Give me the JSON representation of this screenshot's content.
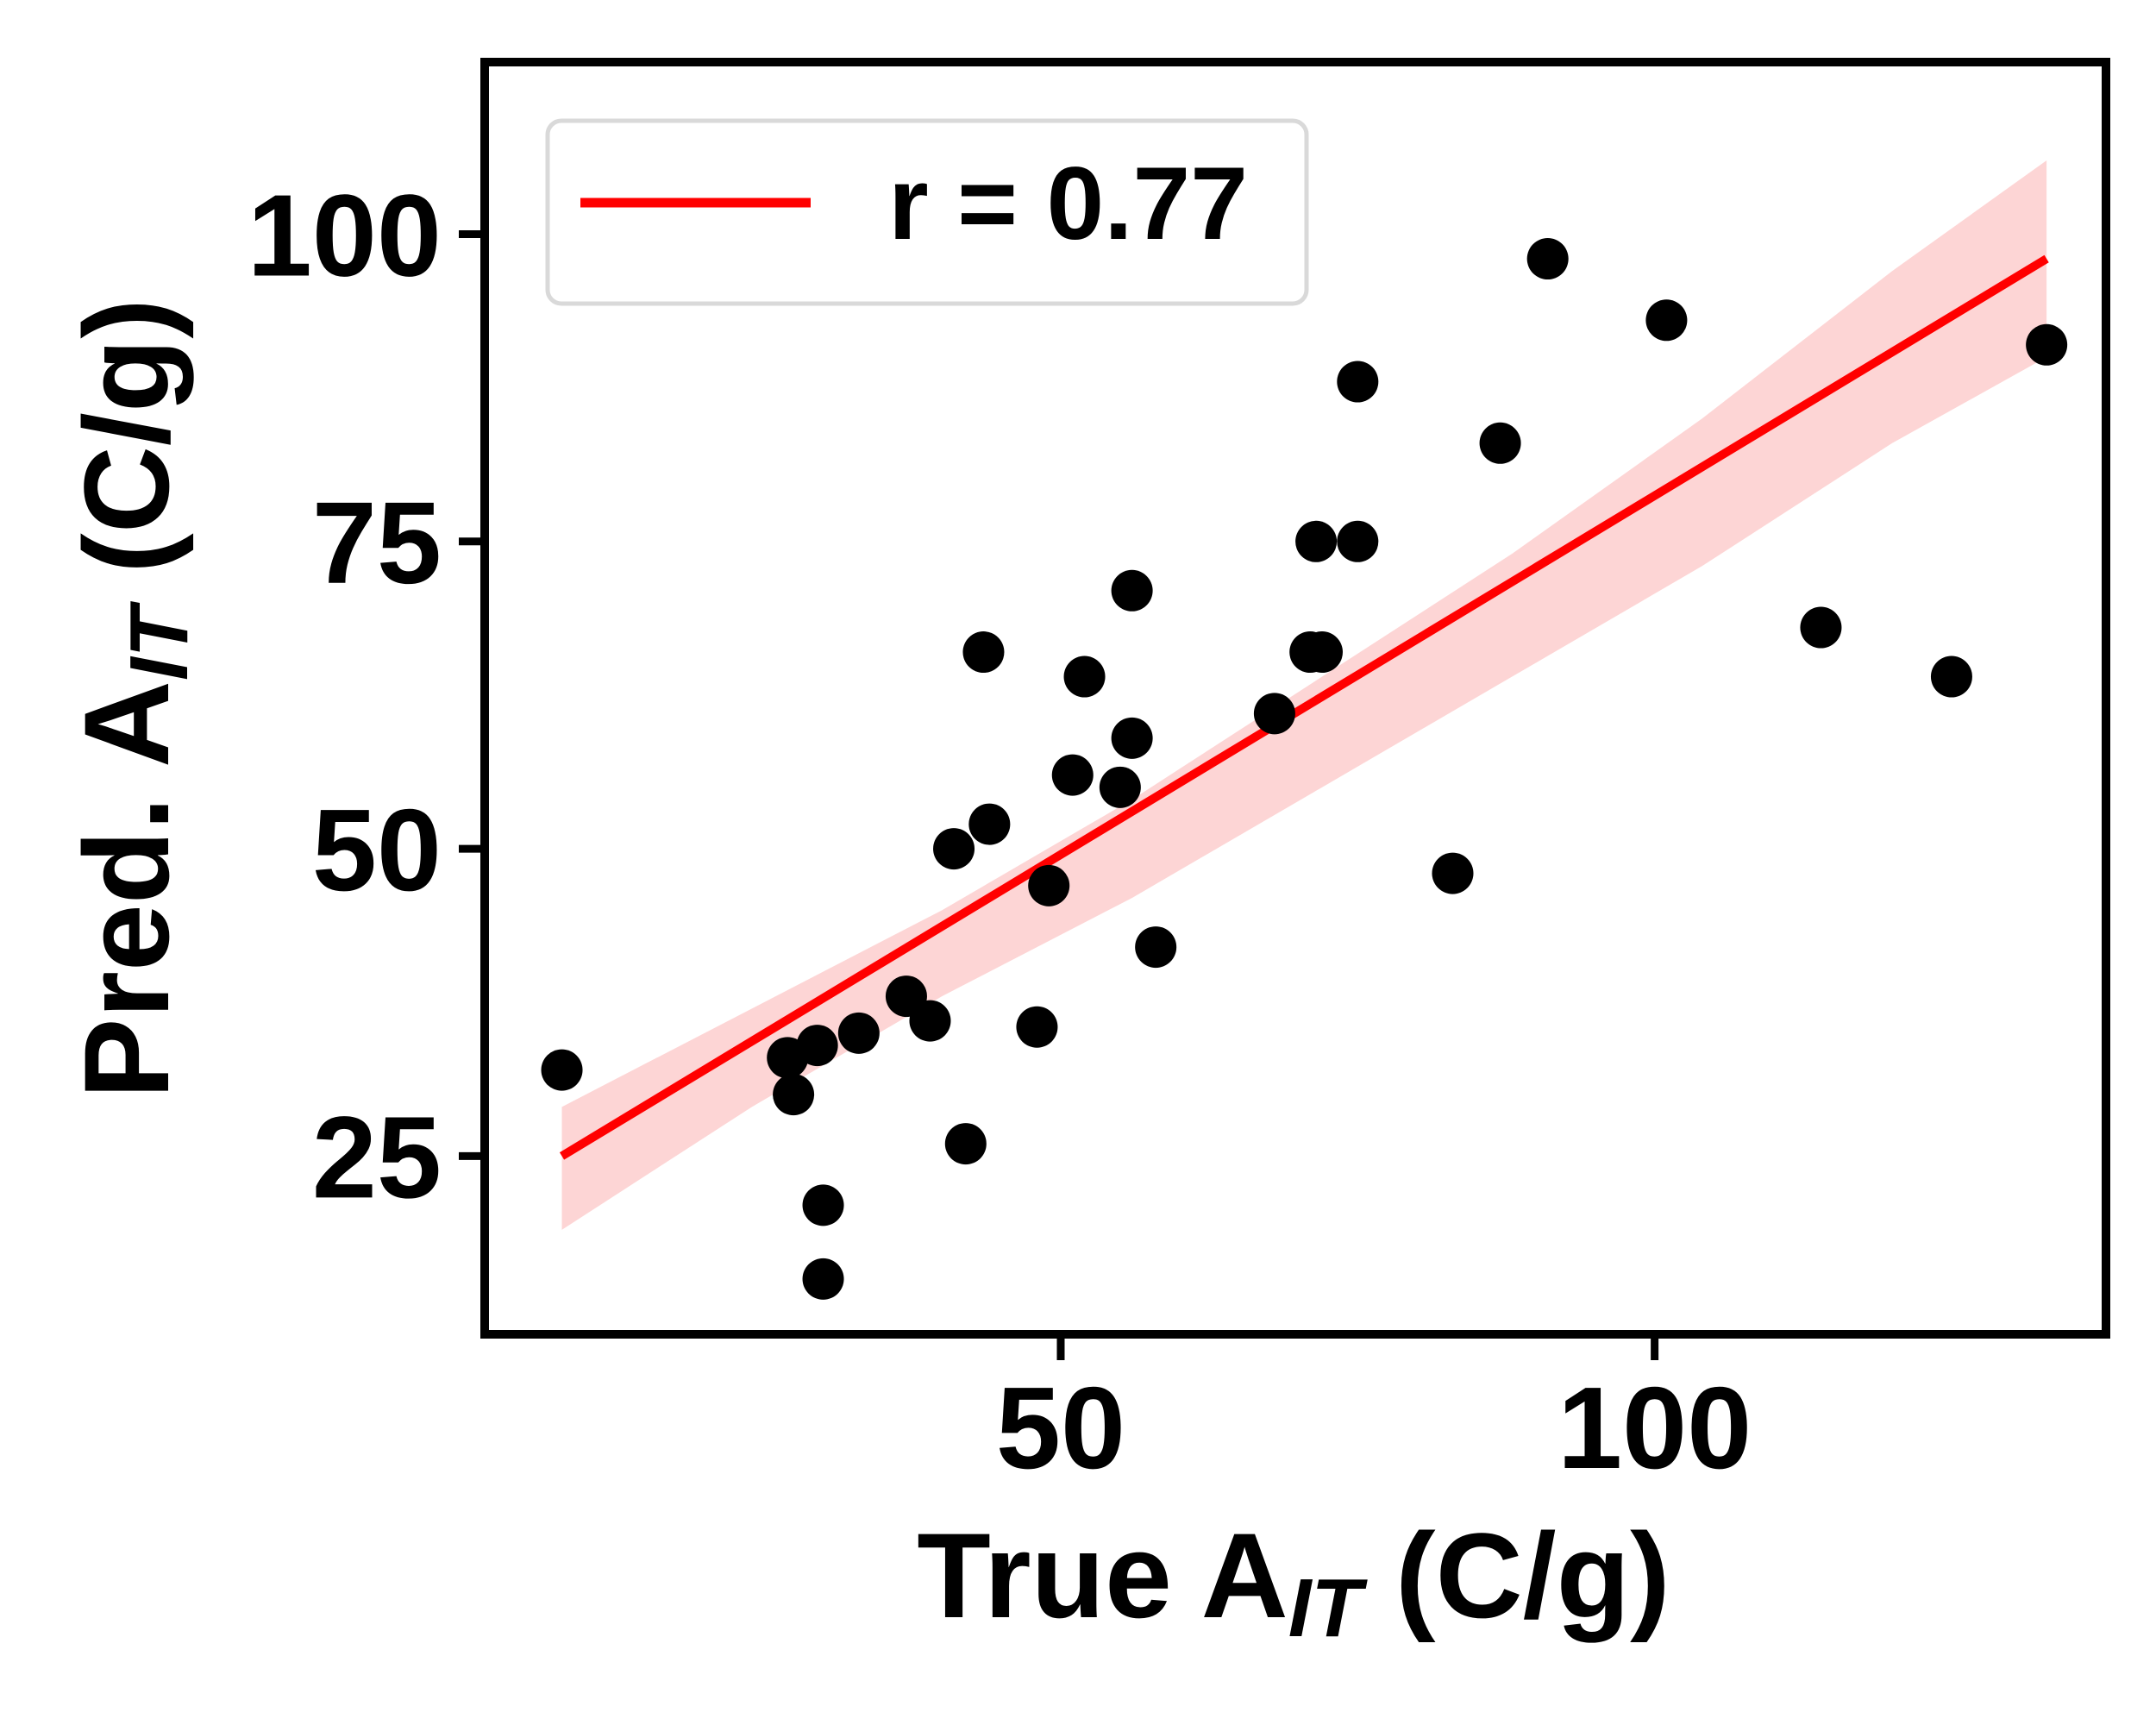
{
  "chart_data": {
    "type": "scatter",
    "title": "",
    "xlabel": {
      "prefix": "True A",
      "sub": "IT",
      "suffix": " (C/g)"
    },
    "ylabel": {
      "prefix": "Pred. A",
      "sub": "IT",
      "suffix": " (C/g)"
    },
    "xlim": [
      1.5,
      138
    ],
    "ylim": [
      10.5,
      114
    ],
    "xticks": [
      50,
      100
    ],
    "yticks": [
      25,
      50,
      75,
      100
    ],
    "grid": false,
    "legend": {
      "placement": "top-left",
      "label": "r = 0.77",
      "r": 0.77
    },
    "colors": {
      "points": "#000000",
      "fit_line": "#ff0000",
      "band": "#fdd5d5",
      "frame": "#000000",
      "legend_border": "#d9d9d9"
    },
    "fit": {
      "x": [
        8,
        133
      ],
      "y": [
        25,
        98
      ]
    },
    "confidence_band": {
      "x": [
        8,
        24,
        40,
        56,
        72,
        88,
        104,
        120,
        133
      ],
      "upper": [
        29,
        37,
        45,
        54,
        64,
        74,
        85,
        97,
        106
      ],
      "lower": [
        19,
        29,
        38,
        46,
        55,
        64,
        73,
        83,
        90
      ]
    },
    "points": [
      {
        "x": 8,
        "y": 32
      },
      {
        "x": 27,
        "y": 33
      },
      {
        "x": 27.5,
        "y": 30
      },
      {
        "x": 29.5,
        "y": 34
      },
      {
        "x": 30,
        "y": 21
      },
      {
        "x": 30,
        "y": 15
      },
      {
        "x": 33,
        "y": 35
      },
      {
        "x": 37,
        "y": 38
      },
      {
        "x": 39,
        "y": 36
      },
      {
        "x": 41,
        "y": 50
      },
      {
        "x": 42,
        "y": 26
      },
      {
        "x": 43.5,
        "y": 66
      },
      {
        "x": 44,
        "y": 52
      },
      {
        "x": 48,
        "y": 35.5
      },
      {
        "x": 49,
        "y": 47
      },
      {
        "x": 51,
        "y": 56
      },
      {
        "x": 52,
        "y": 64
      },
      {
        "x": 55,
        "y": 55
      },
      {
        "x": 56,
        "y": 59
      },
      {
        "x": 56,
        "y": 71
      },
      {
        "x": 58,
        "y": 42
      },
      {
        "x": 68,
        "y": 61
      },
      {
        "x": 71,
        "y": 66
      },
      {
        "x": 71.5,
        "y": 75
      },
      {
        "x": 72,
        "y": 66
      },
      {
        "x": 75,
        "y": 75
      },
      {
        "x": 75,
        "y": 88
      },
      {
        "x": 83,
        "y": 48
      },
      {
        "x": 87,
        "y": 83
      },
      {
        "x": 91,
        "y": 98
      },
      {
        "x": 101,
        "y": 93
      },
      {
        "x": 114,
        "y": 68
      },
      {
        "x": 125,
        "y": 64
      },
      {
        "x": 133,
        "y": 91
      }
    ]
  }
}
